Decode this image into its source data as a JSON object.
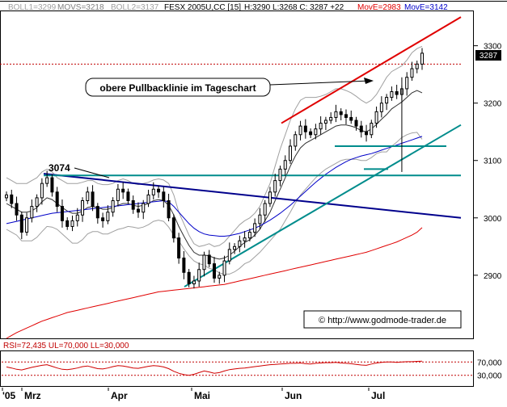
{
  "header": {
    "boll1": "BOLL1=3299",
    "movs": "MOVS=3218",
    "boll2": "BOLL2=3137",
    "instrument": "FESX 2005U,CC [15]",
    "ohlc": "H:3290 L:3268 C: 3287 +22",
    "move1": "MovE=2983",
    "move2": "MovE=3142"
  },
  "annotations": {
    "pullback": "obere Pullbacklinie im Tageschart",
    "level_3074": "3074",
    "source": "© http://www.godmode-trader.de",
    "last_price": "3287"
  },
  "colors": {
    "price": "#000000",
    "boll": "#a0a0a0",
    "move_short": "#0000c8",
    "move_long": "#e00000",
    "red_channel": "#e00000",
    "teal": "#008c8c",
    "navy_trend": "#00008c",
    "rsi": "#d00000"
  },
  "chart_data": {
    "type": "line",
    "title": "FESX 2005U,CC [15]",
    "x_ticks": [
      "'05",
      "Mrz",
      "Apr",
      "Mai",
      "Jun",
      "Jul"
    ],
    "y_ticks": [
      2900,
      3000,
      3100,
      3200,
      3300
    ],
    "ylim": [
      2790,
      3360
    ],
    "series": [
      {
        "name": "FESX 2005U close",
        "values": [
          3040,
          3025,
          3005,
          2975,
          3000,
          3020,
          3035,
          3060,
          3070,
          3045,
          3020,
          2995,
          2985,
          2995,
          3005,
          3030,
          3045,
          3020,
          3000,
          2995,
          3010,
          3030,
          3050,
          3045,
          3030,
          3015,
          3010,
          3025,
          3040,
          3050,
          3045,
          3030,
          3000,
          2965,
          2930,
          2905,
          2885,
          2890,
          2910,
          2935,
          2920,
          2895,
          2900,
          2925,
          2945,
          2950,
          2960,
          2965,
          2975,
          2990,
          3005,
          3025,
          3045,
          3065,
          3085,
          3100,
          3125,
          3145,
          3160,
          3150,
          3145,
          3155,
          3165,
          3170,
          3175,
          3185,
          3180,
          3175,
          3170,
          3160,
          3150,
          3145,
          3165,
          3185,
          3200,
          3210,
          3220,
          3215,
          3225,
          3245,
          3260,
          3268,
          3287
        ]
      },
      {
        "name": "BOLL1",
        "values": [
          3070,
          3065,
          3060,
          3060,
          3060,
          3065,
          3070,
          3080,
          3085,
          3080,
          3070,
          3065,
          3060,
          3060,
          3060,
          3062,
          3065,
          3065,
          3060,
          3058,
          3058,
          3060,
          3065,
          3068,
          3065,
          3060,
          3058,
          3060,
          3062,
          3066,
          3068,
          3066,
          3060,
          3040,
          3010,
          2990,
          2970,
          2955,
          2950,
          2952,
          2955,
          2950,
          2952,
          2958,
          2968,
          2978,
          2988,
          2995,
          3000,
          3008,
          3020,
          3040,
          3060,
          3090,
          3120,
          3145,
          3170,
          3190,
          3205,
          3210,
          3210,
          3210,
          3212,
          3215,
          3220,
          3225,
          3225,
          3222,
          3218,
          3212,
          3205,
          3200,
          3205,
          3215,
          3230,
          3245,
          3255,
          3260,
          3265,
          3275,
          3288,
          3295,
          3299
        ]
      },
      {
        "name": "MOVS",
        "values": [
          3025,
          3020,
          3015,
          3010,
          3010,
          3012,
          3018,
          3028,
          3035,
          3032,
          3025,
          3018,
          3012,
          3008,
          3008,
          3012,
          3018,
          3020,
          3018,
          3015,
          3015,
          3018,
          3022,
          3025,
          3025,
          3022,
          3020,
          3022,
          3025,
          3030,
          3032,
          3030,
          3022,
          3005,
          2985,
          2968,
          2952,
          2940,
          2935,
          2935,
          2934,
          2930,
          2928,
          2930,
          2935,
          2942,
          2950,
          2957,
          2962,
          2970,
          2980,
          2995,
          3010,
          3030,
          3050,
          3070,
          3090,
          3108,
          3122,
          3130,
          3135,
          3140,
          3145,
          3150,
          3155,
          3160,
          3162,
          3162,
          3160,
          3157,
          3152,
          3150,
          3155,
          3163,
          3172,
          3180,
          3190,
          3196,
          3202,
          3210,
          3218,
          3222,
          3218
        ]
      },
      {
        "name": "BOLL2",
        "values": [
          2980,
          2975,
          2970,
          2960,
          2960,
          2960,
          2966,
          2976,
          2985,
          2984,
          2980,
          2972,
          2964,
          2956,
          2956,
          2962,
          2972,
          2976,
          2976,
          2972,
          2972,
          2976,
          2980,
          2982,
          2985,
          2984,
          2982,
          2984,
          2988,
          2994,
          2996,
          2994,
          2984,
          2970,
          2960,
          2946,
          2934,
          2925,
          2920,
          2918,
          2912,
          2910,
          2904,
          2902,
          2902,
          2906,
          2912,
          2920,
          2924,
          2932,
          2940,
          2950,
          2960,
          2970,
          2980,
          2995,
          3010,
          3026,
          3040,
          3050,
          3060,
          3070,
          3078,
          3085,
          3090,
          3095,
          3100,
          3102,
          3102,
          3102,
          3100,
          3100,
          3105,
          3112,
          3115,
          3115,
          3125,
          3132,
          3140,
          3145,
          3148,
          3149,
          3137
        ]
      },
      {
        "name": "MovE=3142",
        "values": [
          2990,
          2992,
          2994,
          2996,
          2998,
          3000,
          3002,
          3004,
          3006,
          3008,
          3009,
          3010,
          3011,
          3012,
          3013,
          3014,
          3015,
          3016,
          3017,
          3018,
          3019,
          3020,
          3021,
          3022,
          3023,
          3024,
          3025,
          3026,
          3027,
          3028,
          3029,
          3030,
          3028,
          3020,
          3010,
          3000,
          2990,
          2982,
          2976,
          2972,
          2970,
          2969,
          2968,
          2968,
          2969,
          2971,
          2973,
          2976,
          2979,
          2982,
          2986,
          2991,
          2996,
          3002,
          3008,
          3015,
          3022,
          3030,
          3038,
          3046,
          3054,
          3062,
          3069,
          3076,
          3082,
          3088,
          3093,
          3098,
          3102,
          3105,
          3108,
          3110,
          3112,
          3115,
          3118,
          3121,
          3124,
          3127,
          3130,
          3133,
          3136,
          3139,
          3142
        ]
      },
      {
        "name": "MovE=2983",
        "values": [
          2790,
          2795,
          2800,
          2804,
          2808,
          2812,
          2816,
          2820,
          2823,
          2826,
          2829,
          2832,
          2835,
          2837,
          2839,
          2841,
          2843,
          2845,
          2847,
          2849,
          2851,
          2853,
          2855,
          2857,
          2859,
          2861,
          2863,
          2865,
          2867,
          2869,
          2871,
          2872,
          2873,
          2874,
          2875,
          2876,
          2877,
          2878,
          2879,
          2880,
          2881,
          2882,
          2883,
          2884,
          2886,
          2888,
          2890,
          2892,
          2894,
          2896,
          2898,
          2900,
          2902,
          2904,
          2906,
          2908,
          2910,
          2912,
          2914,
          2916,
          2918,
          2920,
          2922,
          2924,
          2926,
          2928,
          2930,
          2932,
          2934,
          2936,
          2938,
          2940,
          2943,
          2946,
          2949,
          2952,
          2955,
          2958,
          2962,
          2966,
          2970,
          2975,
          2983
        ]
      }
    ],
    "lines": [
      {
        "name": "red-resistance",
        "from": [
          58,
          3165
        ],
        "to": [
          95,
          3350
        ]
      },
      {
        "name": "navy-downtrend",
        "from": [
          9,
          3077
        ],
        "to": [
          95,
          3000
        ]
      },
      {
        "name": "teal-uptrend",
        "from": [
          38,
          2880
        ],
        "to": [
          95,
          3162
        ]
      },
      {
        "name": "teal-horizontal-3074",
        "from": [
          9,
          3074
        ],
        "to": [
          95,
          3074
        ]
      },
      {
        "name": "teal-horizontal-3125",
        "from": [
          69,
          3125
        ],
        "to": [
          92,
          3125
        ]
      },
      {
        "name": "teal-horizontal-3085",
        "from": [
          75,
          3085
        ],
        "to": [
          80,
          3085
        ]
      },
      {
        "name": "last-price-dashed",
        "from": [
          0,
          3268
        ],
        "to": [
          95,
          3268
        ]
      }
    ],
    "rsi": {
      "label": "RSI=72,435 UL=70,000 LL=30,000",
      "ul": 70,
      "ll": 30,
      "y_ticks": [
        30000,
        70000
      ],
      "values": [
        55,
        52,
        48,
        46,
        50,
        54,
        57,
        60,
        62,
        57,
        52,
        48,
        47,
        49,
        52,
        56,
        58,
        54,
        50,
        49,
        52,
        56,
        59,
        58,
        55,
        52,
        51,
        54,
        57,
        59,
        58,
        55,
        50,
        42,
        36,
        32,
        30,
        33,
        38,
        43,
        40,
        36,
        38,
        43,
        47,
        49,
        51,
        52,
        54,
        56,
        58,
        60,
        62,
        63,
        64,
        65,
        66,
        66,
        67,
        65,
        64,
        66,
        67,
        68,
        68,
        69,
        67,
        66,
        65,
        63,
        61,
        60,
        64,
        67,
        69,
        70,
        70,
        69,
        70,
        71,
        71,
        72,
        72.4
      ]
    }
  }
}
